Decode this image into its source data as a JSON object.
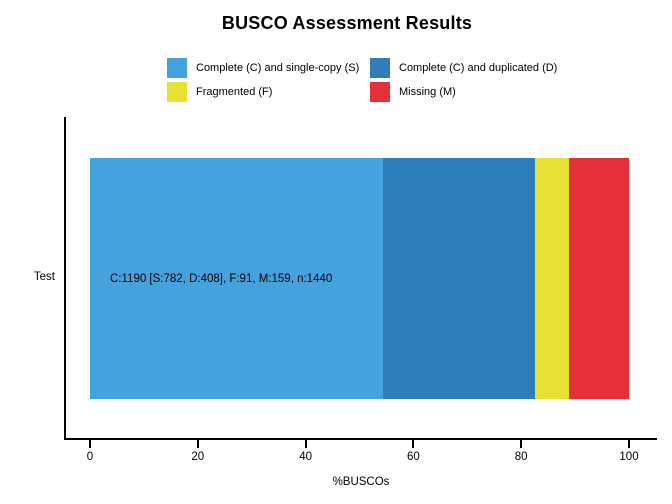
{
  "chart_data": {
    "type": "bar",
    "orientation": "horizontal",
    "stacked": true,
    "title": "BUSCO Assessment Results",
    "categories": [
      "Test"
    ],
    "series": [
      {
        "name": "Complete (C) and single-copy (S)",
        "values": [
          782
        ],
        "percent": 54.3,
        "color": "#46A2DC"
      },
      {
        "name": "Complete (C) and duplicated (D)",
        "values": [
          408
        ],
        "percent": 28.3,
        "color": "#2E7EBC"
      },
      {
        "name": "Fragmented (F)",
        "values": [
          91
        ],
        "percent": 6.3,
        "color": "#E8E033"
      },
      {
        "name": "Missing (M)",
        "values": [
          159
        ],
        "percent": 11.0,
        "color": "#E3303A"
      }
    ],
    "total": 1440,
    "bar_label": "C:1190 [S:782, D:408], F:91, M:159, n:1440",
    "xlabel": "%BUSCOs",
    "x_ticks": [
      0,
      20,
      40,
      60,
      80,
      100
    ],
    "xlim": [
      0,
      100
    ],
    "grid": false,
    "legend_position": "top"
  }
}
